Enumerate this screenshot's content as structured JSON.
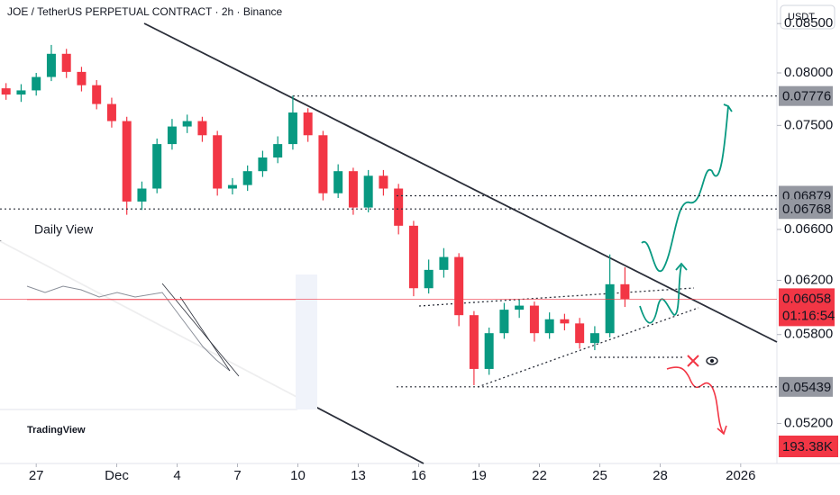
{
  "chart_data": {
    "type": "candlestick",
    "title": "JOE / TetherUS PERPETUAL CONTRACT · 2h · Binance",
    "currency": "USDT",
    "inset_title": "Daily View",
    "brand": "TradingView",
    "log_scale": true,
    "up_color": "#089981",
    "down_color": "#f23645",
    "ylim": [
      0.0495,
      0.0875
    ],
    "yticks": [
      {
        "value": 0.052,
        "label": "0.05200"
      },
      {
        "value": 0.058,
        "label": "0.05800"
      },
      {
        "value": 0.062,
        "label": "0.06200"
      },
      {
        "value": 0.066,
        "label": "0.06600"
      },
      {
        "value": 0.075,
        "label": "0.07500"
      },
      {
        "value": 0.08,
        "label": "0.08000"
      },
      {
        "value": 0.085,
        "label": "0.08500"
      }
    ],
    "xlim": [
      -1.8,
      36.8
    ],
    "xticks": [
      {
        "value": 0,
        "label": "27"
      },
      {
        "value": 4,
        "label": "Dec"
      },
      {
        "value": 7,
        "label": "4"
      },
      {
        "value": 10,
        "label": "7"
      },
      {
        "value": 13,
        "label": "10"
      },
      {
        "value": 16,
        "label": "13"
      },
      {
        "value": 19,
        "label": "16"
      },
      {
        "value": 22,
        "label": "19"
      },
      {
        "value": 25,
        "label": "22"
      },
      {
        "value": 28,
        "label": "25"
      },
      {
        "value": 31,
        "label": "28"
      },
      {
        "value": 35,
        "label": "2026"
      }
    ],
    "x": [
      -1.5,
      -0.75,
      0,
      0.75,
      1.5,
      2.25,
      3,
      3.75,
      4.5,
      5.25,
      6,
      6.75,
      7.5,
      8.25,
      9,
      9.75,
      10.5,
      11.25,
      12,
      12.75,
      13.5,
      14.25,
      15,
      15.75,
      16.5,
      17.25,
      18,
      18.75,
      19.5,
      20.25,
      21,
      21.75,
      22.5,
      23.25,
      24,
      24.75,
      25.5,
      26.25,
      27,
      27.75,
      28.5,
      29.25
    ],
    "open": [
      0.0785,
      0.0779,
      0.0783,
      0.0796,
      0.0819,
      0.0801,
      0.0788,
      0.077,
      0.0754,
      0.0683,
      0.0694,
      0.0733,
      0.0749,
      0.0754,
      0.0741,
      0.0694,
      0.0697,
      0.0709,
      0.0721,
      0.0733,
      0.0762,
      0.0741,
      0.069,
      0.0709,
      0.0678,
      0.0705,
      0.0694,
      0.0663,
      0.0614,
      0.0628,
      0.0638,
      0.0594,
      0.0556,
      0.0581,
      0.0598,
      0.0601,
      0.0581,
      0.0591,
      0.0588,
      0.0574,
      0.0581,
      0.0617
    ],
    "high": [
      0.079,
      0.0789,
      0.08,
      0.0828,
      0.0824,
      0.0806,
      0.0793,
      0.0776,
      0.0758,
      0.07,
      0.0738,
      0.0756,
      0.076,
      0.0758,
      0.0745,
      0.0703,
      0.0714,
      0.0727,
      0.074,
      0.0778,
      0.0766,
      0.0745,
      0.0715,
      0.0712,
      0.071,
      0.071,
      0.0698,
      0.0667,
      0.0636,
      0.0645,
      0.0641,
      0.0597,
      0.0585,
      0.0603,
      0.0606,
      0.0604,
      0.0596,
      0.0595,
      0.0592,
      0.0586,
      0.064,
      0.063
    ],
    "low": [
      0.0774,
      0.0772,
      0.0778,
      0.0792,
      0.0795,
      0.0782,
      0.0765,
      0.0748,
      0.0672,
      0.0676,
      0.069,
      0.0728,
      0.0743,
      0.0735,
      0.0688,
      0.0689,
      0.0692,
      0.0704,
      0.0716,
      0.0728,
      0.0735,
      0.0684,
      0.0686,
      0.0672,
      0.0674,
      0.0688,
      0.0656,
      0.0608,
      0.061,
      0.0622,
      0.0586,
      0.0545,
      0.0552,
      0.0577,
      0.0592,
      0.0575,
      0.0577,
      0.0583,
      0.057,
      0.0569,
      0.0578,
      0.06
    ],
    "close": [
      0.0779,
      0.0783,
      0.0796,
      0.0819,
      0.0801,
      0.0788,
      0.077,
      0.0754,
      0.0683,
      0.0694,
      0.0733,
      0.0749,
      0.0754,
      0.0741,
      0.0694,
      0.0697,
      0.0709,
      0.0721,
      0.0733,
      0.0762,
      0.0741,
      0.069,
      0.0709,
      0.0678,
      0.0705,
      0.0694,
      0.0663,
      0.0614,
      0.0628,
      0.0638,
      0.0594,
      0.0556,
      0.0581,
      0.0598,
      0.0601,
      0.0581,
      0.0591,
      0.0588,
      0.0574,
      0.0581,
      0.0617,
      0.0606
    ],
    "price_labels": [
      {
        "value": 0.07776,
        "label": "0.07776"
      },
      {
        "value": 0.06879,
        "label": "0.06879"
      },
      {
        "value": 0.06768,
        "label": "0.06768"
      },
      {
        "value": 0.05439,
        "label": "0.05439"
      }
    ],
    "current_price": {
      "value": 0.06058,
      "label": "0.06058",
      "countdown": "01:16:54"
    },
    "volume_label": "193.38K"
  }
}
